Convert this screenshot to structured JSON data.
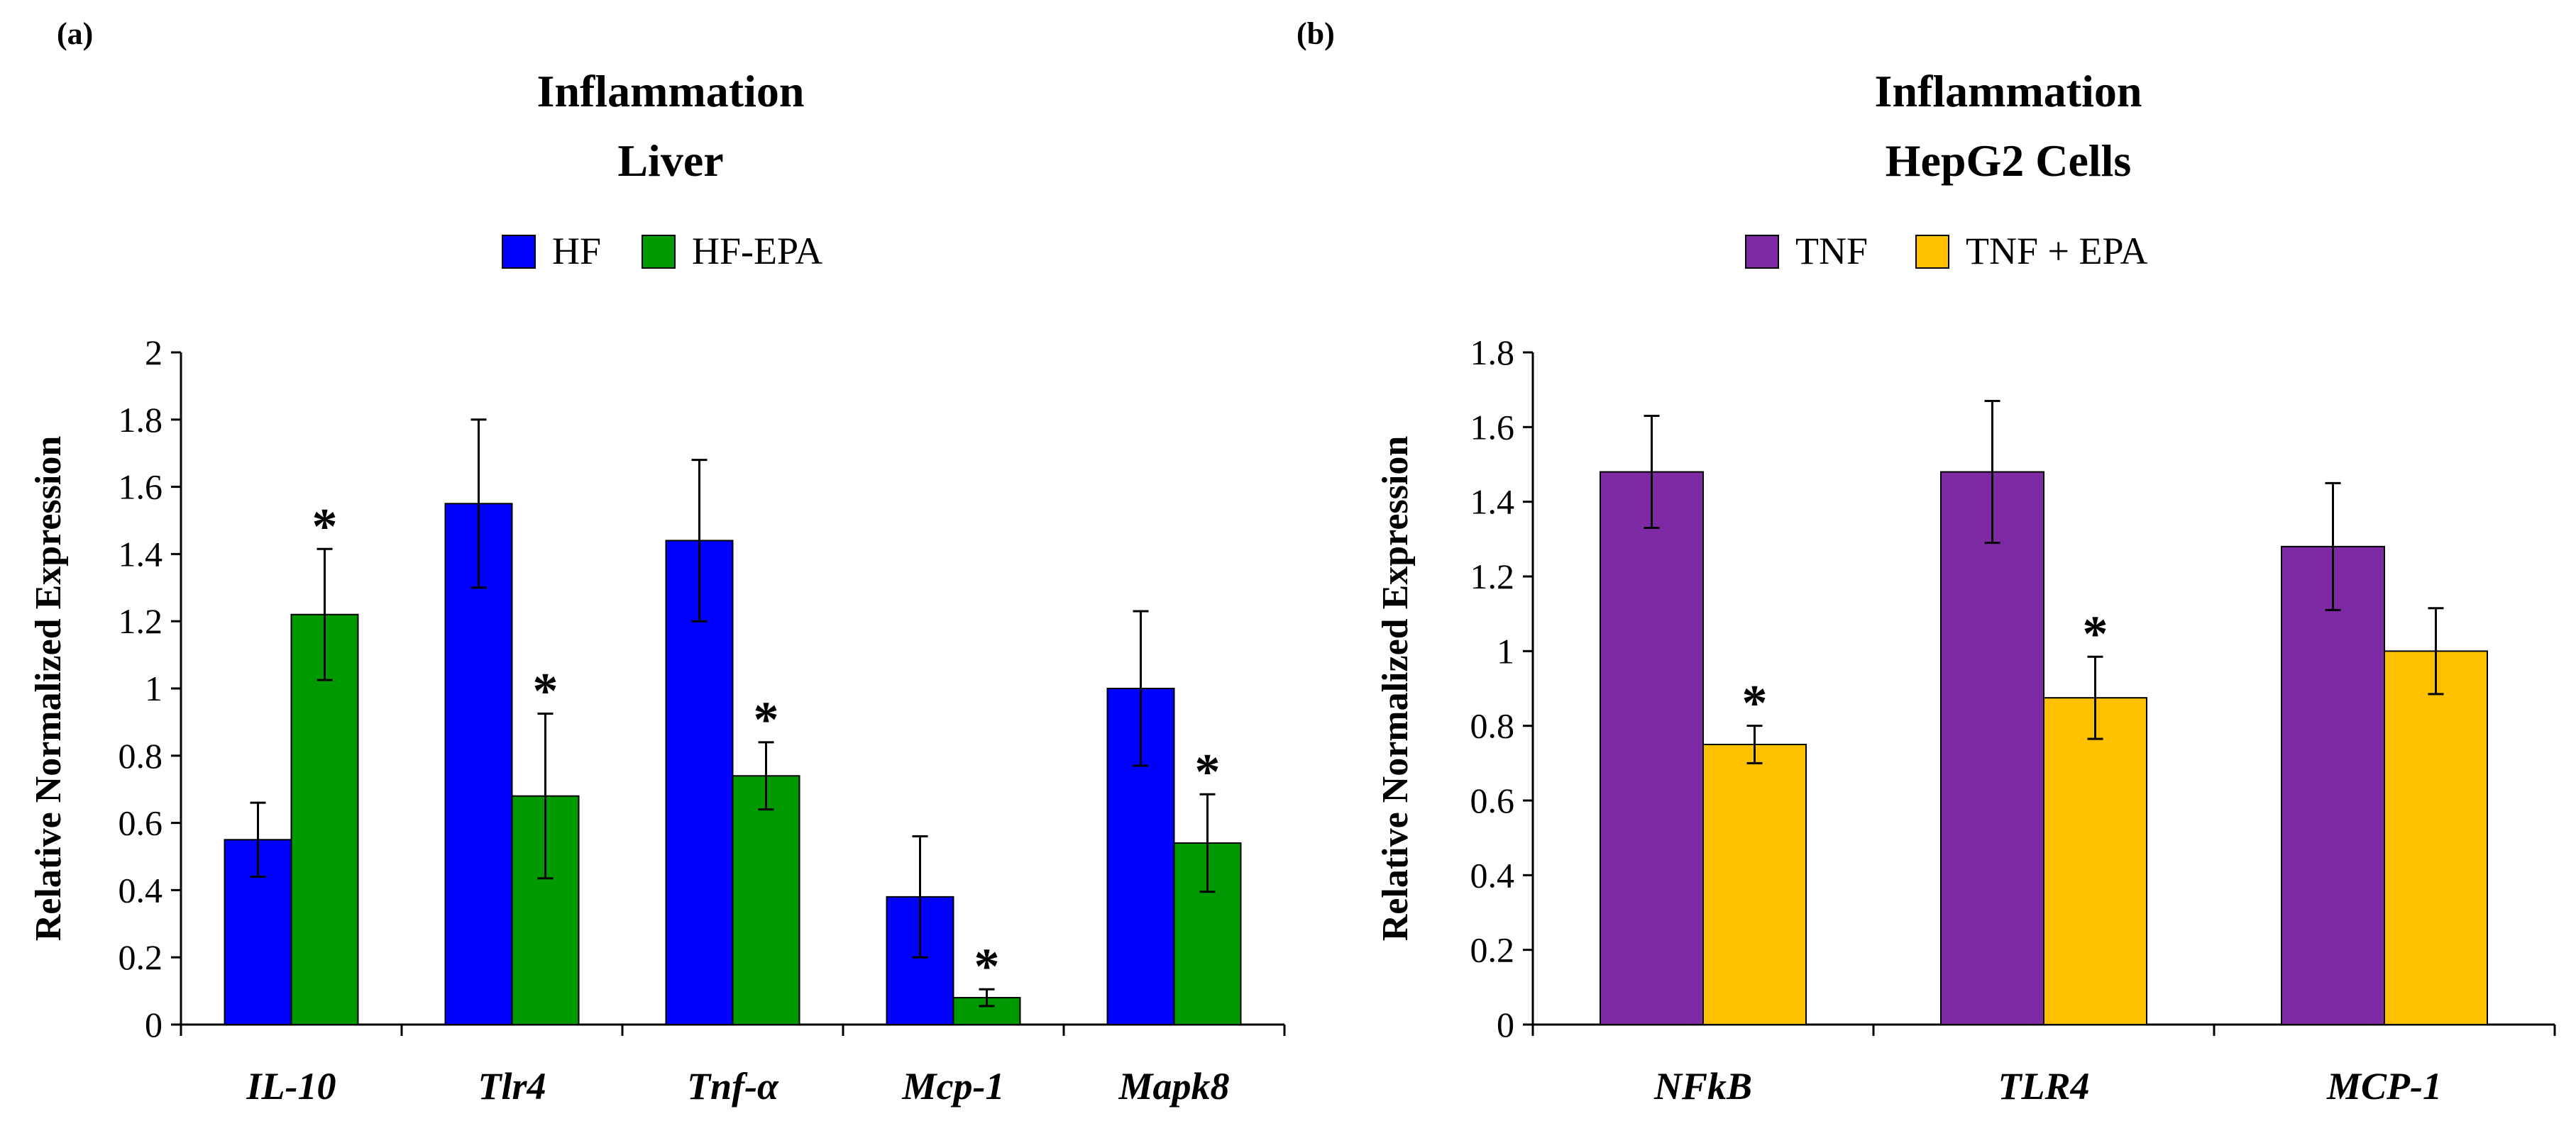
{
  "chart_data": [
    {
      "type": "bar",
      "panel_label": "(a)",
      "title_lines": [
        "Inflammation",
        "Liver"
      ],
      "ylabel": "Relative Normalized Expression",
      "xlabel": "",
      "ylim": [
        0,
        2
      ],
      "yticks": [
        "0",
        "0.2",
        "0.4",
        "0.6",
        "0.8",
        "1",
        "1.2",
        "1.4",
        "1.6",
        "1.8",
        "2"
      ],
      "categories": [
        "IL-10",
        "Tlr4",
        "Tnf-α",
        "Mcp-1",
        "Mapk8"
      ],
      "series": [
        {
          "name": "HF",
          "color": "#0000ff",
          "values": [
            0.55,
            1.55,
            1.44,
            0.38,
            1.0
          ],
          "errors": [
            0.11,
            0.25,
            0.24,
            0.18,
            0.23
          ],
          "significance": [
            "",
            "",
            "",
            "",
            ""
          ]
        },
        {
          "name": "HF-EPA",
          "color": "#009900",
          "values": [
            1.22,
            0.68,
            0.74,
            0.08,
            0.54
          ],
          "errors": [
            0.195,
            0.245,
            0.1,
            0.025,
            0.145
          ],
          "significance": [
            "*",
            "*",
            "*",
            "*",
            "*"
          ]
        }
      ]
    },
    {
      "type": "bar",
      "panel_label": "(b)",
      "title_lines": [
        "Inflammation",
        "HepG2 Cells"
      ],
      "ylabel": "Relative Normalized Expression",
      "xlabel": "",
      "ylim": [
        0,
        1.8
      ],
      "yticks": [
        "0",
        "0.2",
        "0.4",
        "0.6",
        "0.8",
        "1",
        "1.2",
        "1.4",
        "1.6",
        "1.8"
      ],
      "categories": [
        "NFkB",
        "TLR4",
        "MCP-1"
      ],
      "series": [
        {
          "name": "TNF",
          "color": "#7f2aa5",
          "values": [
            1.48,
            1.48,
            1.28
          ],
          "errors": [
            0.15,
            0.19,
            0.17
          ],
          "significance": [
            "",
            "",
            ""
          ]
        },
        {
          "name": "TNF + EPA",
          "color": "#ffc000",
          "values": [
            0.75,
            0.875,
            1.0
          ],
          "errors": [
            0.05,
            0.11,
            0.115
          ],
          "significance": [
            "*",
            "*",
            ""
          ]
        }
      ]
    }
  ]
}
